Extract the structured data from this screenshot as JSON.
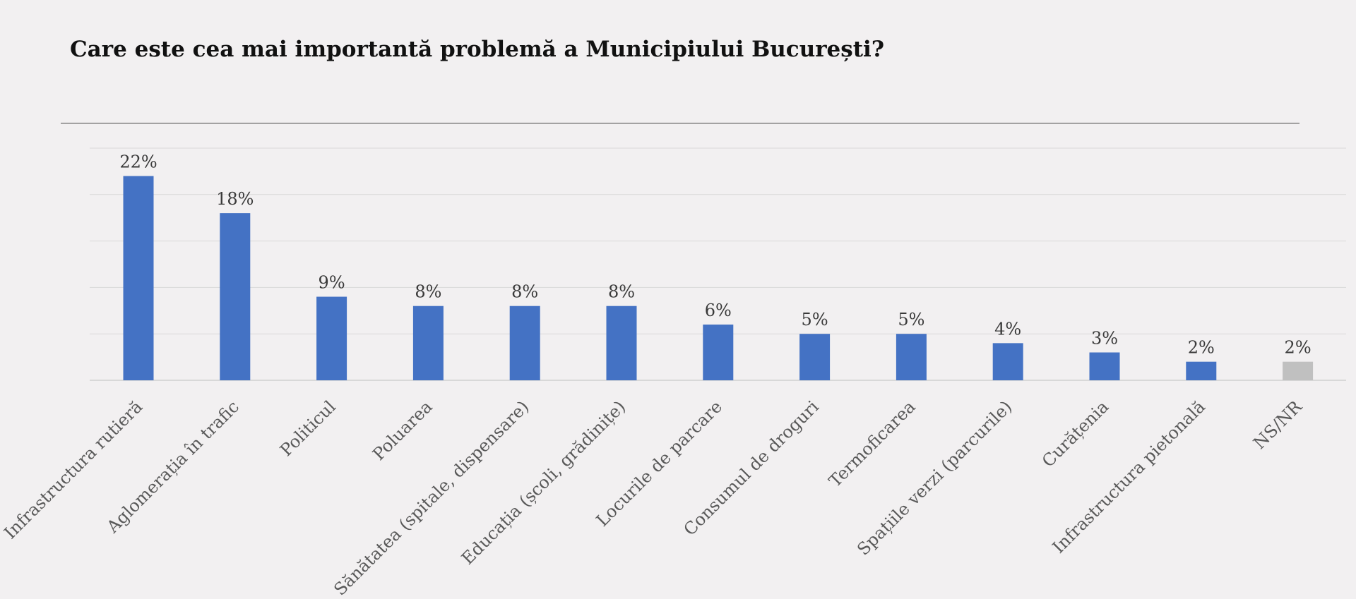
{
  "chart_data": {
    "type": "bar",
    "title": "Care este cea mai importantă problemă a Municipiului București?",
    "categories": [
      "Infrastructura rutieră",
      "Aglomerația în trafic",
      "Politicul",
      "Poluarea",
      "Sănătatea (spitale, dispensare)",
      "Educația (școli, grădinițe)",
      "Locurile de parcare",
      "Consumul de droguri",
      "Termoficarea",
      "Spațiile verzi (parcurile)",
      "Curățenia",
      "Infrastructura pietonală",
      "NS/NR"
    ],
    "values": [
      22,
      18,
      9,
      8,
      8,
      8,
      6,
      5,
      5,
      4,
      3,
      2,
      2
    ],
    "data_labels": [
      "22%",
      "18%",
      "9%",
      "8%",
      "8%",
      "8%",
      "6%",
      "5%",
      "5%",
      "4%",
      "3%",
      "2%",
      "2%"
    ],
    "bar_colors": [
      "#4472c4",
      "#4472c4",
      "#4472c4",
      "#4472c4",
      "#4472c4",
      "#4472c4",
      "#4472c4",
      "#4472c4",
      "#4472c4",
      "#4472c4",
      "#4472c4",
      "#4472c4",
      "#c0c0c0"
    ],
    "ylim": [
      0,
      25
    ],
    "gridlines": [
      0,
      5,
      10,
      15,
      20,
      25
    ],
    "grid": true,
    "legend": "none",
    "xlabel": "",
    "ylabel": ""
  }
}
